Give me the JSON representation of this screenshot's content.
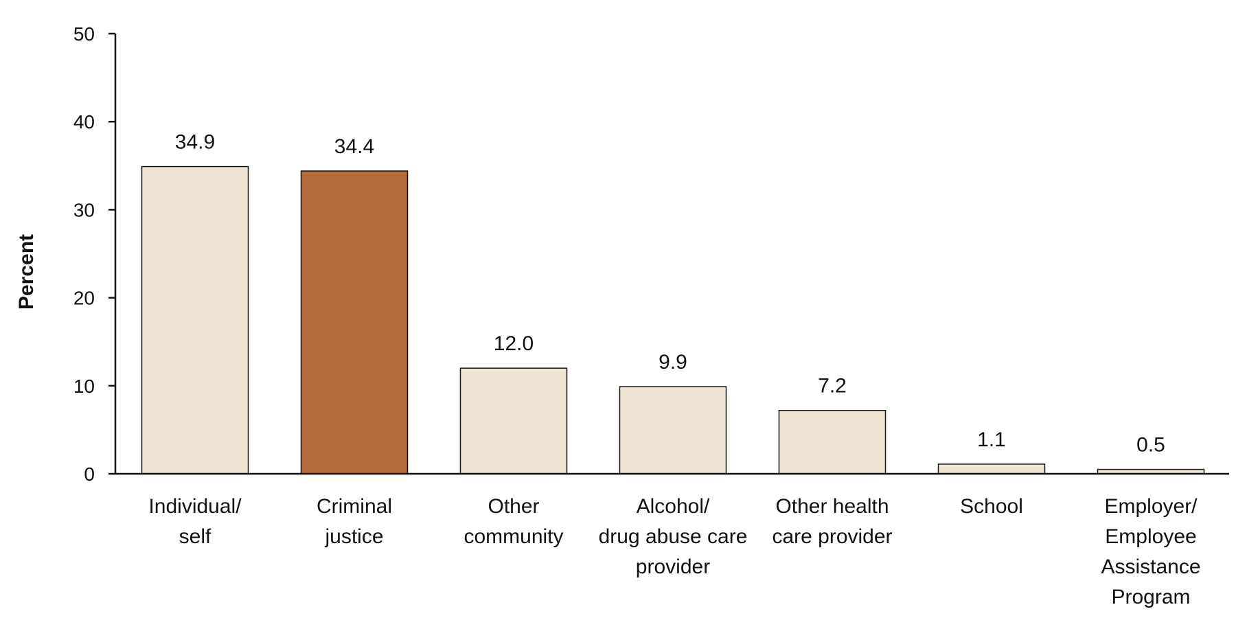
{
  "chart_data": {
    "type": "bar",
    "title": "",
    "xlabel": "",
    "ylabel": "Percent",
    "ylim": [
      0,
      50
    ],
    "yticks": [
      0,
      10,
      20,
      30,
      40,
      50
    ],
    "categories": [
      [
        "Individual/",
        "self"
      ],
      [
        "Criminal",
        "justice"
      ],
      [
        "Other",
        "community"
      ],
      [
        "Alcohol/",
        "drug abuse care",
        "provider"
      ],
      [
        "Other health",
        "care provider"
      ],
      [
        "School"
      ],
      [
        "Employer/",
        "Employee",
        "Assistance",
        "Program"
      ]
    ],
    "values": [
      34.9,
      34.4,
      12.0,
      9.9,
      7.2,
      1.1,
      0.5
    ],
    "value_labels": [
      "34.9",
      "34.4",
      "12.0",
      "9.9",
      "7.2",
      "1.1",
      "0.5"
    ],
    "highlight_index": 1,
    "colors": {
      "bar": "#f1e6d6",
      "highlight": "#b56a39",
      "axis": "#111111"
    }
  }
}
